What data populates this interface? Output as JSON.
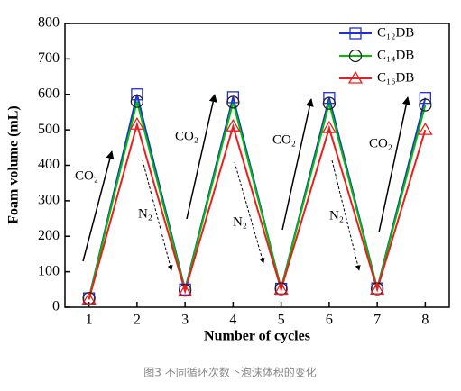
{
  "chart_data": {
    "type": "line",
    "x_label": "Number of cycles",
    "y_label": "Foam volume (mL)",
    "x": [
      1,
      2,
      3,
      4,
      5,
      6,
      7,
      8
    ],
    "xlim": [
      0.5,
      8.5
    ],
    "xticks": [
      1,
      2,
      3,
      4,
      5,
      6,
      7,
      8
    ],
    "ylim": [
      0,
      800
    ],
    "yticks": [
      0,
      100,
      200,
      300,
      400,
      500,
      600,
      700,
      800
    ],
    "series": [
      {
        "name": "C₁₂DB",
        "color": "#1f2fd6",
        "marker": "square",
        "values": [
          25,
          600,
          50,
          592,
          52,
          590,
          53,
          590
        ]
      },
      {
        "name": "C₁₄DB",
        "color": "#00c000",
        "marker": "circle",
        "values": [
          25,
          580,
          48,
          578,
          52,
          575,
          52,
          570
        ]
      },
      {
        "name": "C₁₆DB",
        "color": "#ee1c1c",
        "marker": "triangle",
        "values": [
          22,
          515,
          45,
          510,
          50,
          505,
          50,
          500
        ]
      }
    ],
    "annotations": [
      "CO₂",
      "CO₂",
      "CO₂",
      "CO₂",
      "N₂",
      "N₂",
      "N₂"
    ],
    "legend": "upper right",
    "caption": "图3 不同循环次数下泡沫体积的变化"
  }
}
